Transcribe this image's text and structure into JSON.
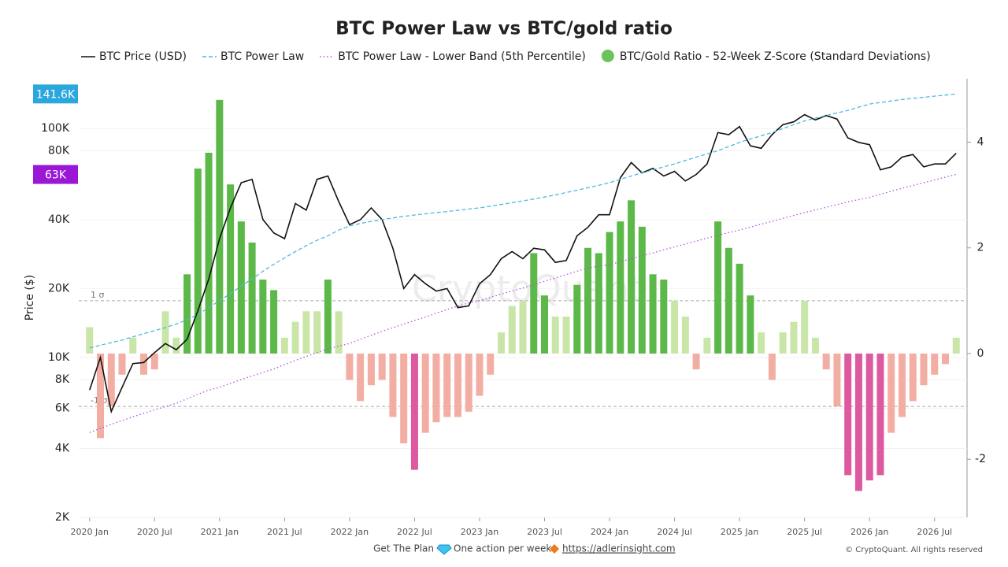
{
  "chart_data": {
    "type": "line",
    "title": "BTC Power Law vs BTC/gold ratio",
    "y_label": "Price ($)",
    "watermark": "CryptoQuant",
    "log_y": true,
    "x": [
      "2020-01",
      "2020-02",
      "2020-03",
      "2020-04",
      "2020-05",
      "2020-06",
      "2020-07",
      "2020-08",
      "2020-09",
      "2020-10",
      "2020-11",
      "2020-12",
      "2021-01",
      "2021-02",
      "2021-03",
      "2021-04",
      "2021-05",
      "2021-06",
      "2021-07",
      "2021-08",
      "2021-09",
      "2021-10",
      "2021-11",
      "2021-12",
      "2022-01",
      "2022-02",
      "2022-03",
      "2022-04",
      "2022-05",
      "2022-06",
      "2022-07",
      "2022-08",
      "2022-09",
      "2022-10",
      "2022-11",
      "2022-12",
      "2023-01",
      "2023-02",
      "2023-03",
      "2023-04",
      "2023-05",
      "2023-06",
      "2023-07",
      "2023-08",
      "2023-09",
      "2023-10",
      "2023-11",
      "2023-12",
      "2024-01",
      "2024-02",
      "2024-03",
      "2024-04",
      "2024-05",
      "2024-06",
      "2024-07",
      "2024-08",
      "2024-09",
      "2024-10",
      "2024-11",
      "2024-12",
      "2025-01",
      "2025-02",
      "2025-03",
      "2025-04",
      "2025-05",
      "2025-06",
      "2025-07",
      "2025-08",
      "2025-09",
      "2025-10",
      "2025-11",
      "2025-12",
      "2026-01",
      "2026-02",
      "2026-03",
      "2026-04",
      "2026-05",
      "2026-06",
      "2026-07",
      "2026-08",
      "2026-09"
    ],
    "xlim": [
      "2019-12",
      "2026-10"
    ],
    "xticks": [
      {
        "value": "2020-01",
        "label": "2020 Jan"
      },
      {
        "value": "2020-07",
        "label": "2020 Jul"
      },
      {
        "value": "2021-01",
        "label": "2021 Jan"
      },
      {
        "value": "2021-07",
        "label": "2021 Jul"
      },
      {
        "value": "2022-01",
        "label": "2022 Jan"
      },
      {
        "value": "2022-07",
        "label": "2022 Jul"
      },
      {
        "value": "2023-01",
        "label": "2023 Jan"
      },
      {
        "value": "2023-07",
        "label": "2023 Jul"
      },
      {
        "value": "2024-01",
        "label": "2024 Jan"
      },
      {
        "value": "2024-07",
        "label": "2024 Jul"
      },
      {
        "value": "2025-01",
        "label": "2025 Jan"
      },
      {
        "value": "2025-07",
        "label": "2025 Jul"
      },
      {
        "value": "2026-01",
        "label": "2026 Jan"
      },
      {
        "value": "2026-07",
        "label": "2026 Jul"
      }
    ],
    "ylim": [
      2000,
      165000
    ],
    "yticks": [
      {
        "value": 2000,
        "label": "2K"
      },
      {
        "value": 4000,
        "label": "4K"
      },
      {
        "value": 6000,
        "label": "6K"
      },
      {
        "value": 8000,
        "label": "8K"
      },
      {
        "value": 10000,
        "label": "10K"
      },
      {
        "value": 20000,
        "label": "20K"
      },
      {
        "value": 40000,
        "label": "40K"
      },
      {
        "value": 80000,
        "label": "80K"
      },
      {
        "value": 100000,
        "label": "100K"
      }
    ],
    "y2lim": [
      -3.1,
      5.2
    ],
    "y2ticks": [
      -2,
      0,
      2,
      4
    ],
    "reference_lines": [
      {
        "value": 1,
        "label": "1 σ"
      },
      {
        "value": -1,
        "label": "-1 σ"
      }
    ],
    "series": [
      {
        "name": "BTC Price (USD)",
        "color": "#111111",
        "dash": "solid",
        "kind": "line",
        "values": [
          7200,
          10000,
          5800,
          7400,
          9400,
          9500,
          10500,
          11500,
          10800,
          12000,
          16000,
          22000,
          33000,
          45000,
          58000,
          60000,
          40000,
          35000,
          33000,
          47000,
          44000,
          60000,
          62000,
          48000,
          38000,
          40000,
          45000,
          40000,
          30000,
          20000,
          23000,
          21000,
          19500,
          20000,
          16500,
          16800,
          21000,
          23000,
          27000,
          29000,
          27000,
          30000,
          29500,
          26000,
          26500,
          34000,
          37000,
          42000,
          42000,
          61000,
          71000,
          64000,
          67000,
          62000,
          65000,
          59000,
          63000,
          70000,
          96000,
          94000,
          102000,
          84000,
          82000,
          94000,
          104000,
          107000,
          115000,
          109000,
          114000,
          110000,
          91000,
          87000,
          85000,
          66000,
          68000,
          75000,
          77000,
          68000,
          70000,
          70000,
          78000
        ]
      },
      {
        "name": "BTC Power Law",
        "color": "#4fb8e0",
        "dash": "dashed",
        "kind": "line",
        "last_label": "141.6K",
        "label_color": "#2aa7dc",
        "values": [
          11000,
          11300,
          11600,
          11900,
          12300,
          12700,
          13100,
          13500,
          14000,
          14600,
          15400,
          16500,
          17700,
          19000,
          20500,
          22000,
          23800,
          25500,
          27200,
          29000,
          30800,
          32500,
          34000,
          36000,
          37500,
          38500,
          39300,
          40000,
          40700,
          41300,
          41900,
          42400,
          42900,
          43400,
          43900,
          44500,
          45000,
          45800,
          46600,
          47400,
          48300,
          49200,
          50200,
          51300,
          52500,
          53800,
          55100,
          56500,
          58000,
          60000,
          62000,
          64000,
          66000,
          68000,
          70000,
          72500,
          75000,
          77500,
          80000,
          83500,
          87000,
          90000,
          93000,
          96000,
          100000,
          104000,
          108000,
          111000,
          114000,
          117000,
          120000,
          124000,
          128000,
          130000,
          132000,
          134000,
          135500,
          137000,
          138500,
          140000,
          141600
        ]
      },
      {
        "name": "BTC Power Law - Lower Band (5th Percentile)",
        "color": "#b44fe0",
        "dash": "dotted",
        "kind": "line",
        "last_label": "63K",
        "label_color": "#9b17d6",
        "values": [
          4700,
          4900,
          5100,
          5300,
          5500,
          5700,
          5900,
          6100,
          6300,
          6600,
          6900,
          7200,
          7400,
          7700,
          8000,
          8300,
          8600,
          8900,
          9300,
          9700,
          10100,
          10500,
          10900,
          11200,
          11500,
          12000,
          12500,
          13000,
          13500,
          14000,
          14500,
          15000,
          15600,
          16200,
          16800,
          17300,
          17700,
          18300,
          18900,
          19500,
          20100,
          20800,
          21500,
          22200,
          23000,
          23800,
          24600,
          25000,
          25400,
          26200,
          27000,
          27800,
          28600,
          29500,
          30400,
          31300,
          32200,
          33200,
          34200,
          35100,
          36000,
          37100,
          38200,
          39300,
          40500,
          41700,
          42900,
          44100,
          45300,
          46500,
          47800,
          48900,
          50000,
          51600,
          53200,
          54800,
          56400,
          58000,
          59600,
          61300,
          63000
        ]
      },
      {
        "name": "BTC/Gold Ratio - 52-Week Z-Score (Standard Deviations)",
        "color": "#6cc35a",
        "kind": "bar",
        "axis": "y2",
        "color_positive": "#c9e6a8",
        "color_positive_strong": "#5cb848",
        "color_negative": "#f3aea4",
        "color_negative_strong": "#de5aa0",
        "strong_above": 1,
        "strong_below": -2,
        "values": [
          0.5,
          -1.6,
          -1.0,
          -0.4,
          0.3,
          -0.4,
          -0.3,
          0.8,
          0.3,
          1.5,
          3.5,
          3.8,
          4.8,
          3.2,
          2.5,
          2.1,
          1.4,
          1.2,
          0.3,
          0.6,
          0.8,
          0.8,
          1.4,
          0.8,
          -0.5,
          -0.9,
          -0.6,
          -0.5,
          -1.2,
          -1.7,
          -2.2,
          -1.5,
          -1.3,
          -1.2,
          -1.2,
          -1.1,
          -0.8,
          -0.4,
          0.4,
          0.9,
          1.0,
          1.9,
          1.1,
          0.7,
          0.7,
          1.3,
          2.0,
          1.9,
          2.3,
          2.5,
          2.9,
          2.4,
          1.5,
          1.4,
          1.0,
          0.7,
          -0.3,
          0.3,
          2.5,
          2.0,
          1.7,
          1.1,
          0.4,
          -0.5,
          0.4,
          0.6,
          1.0,
          0.3,
          -0.3,
          -1.0,
          -2.3,
          -2.6,
          -2.4,
          -2.3,
          -1.5,
          -1.2,
          -0.9,
          -0.6,
          -0.4,
          -0.2,
          0.3
        ]
      }
    ],
    "footer": {
      "plan": "Get The Plan",
      "action": "One action per week",
      "link": "https://adlerinsight.com",
      "copyright": "© CryptoQuant. All rights reserved"
    }
  }
}
